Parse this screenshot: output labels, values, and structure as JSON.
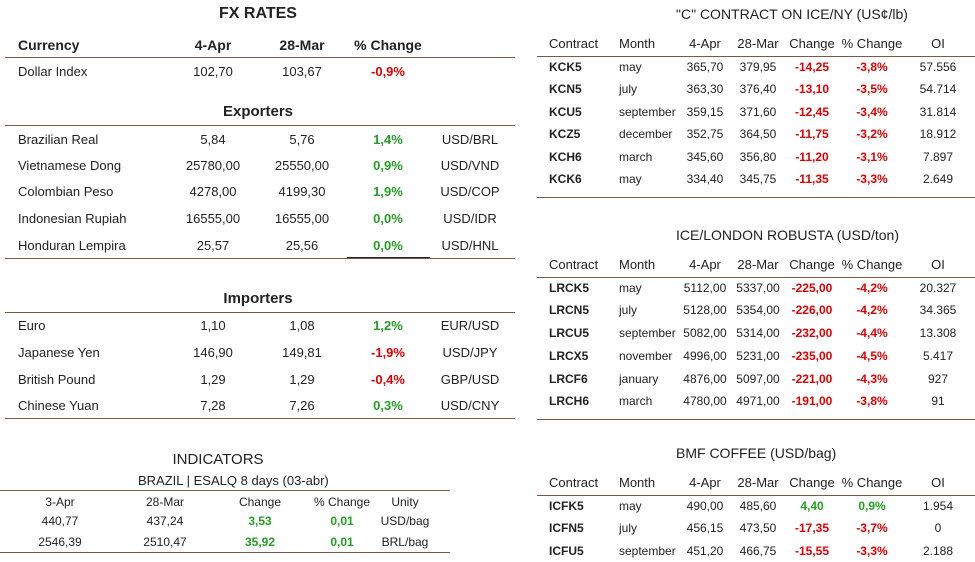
{
  "fx": {
    "title": "FX RATES",
    "header": [
      "Currency",
      "4-Apr",
      "28-Mar",
      "% Change"
    ],
    "rows": [
      [
        "Dollar Index",
        "102,70",
        "103,67",
        "-0,9%"
      ]
    ]
  },
  "exporters": {
    "title": "Exporters",
    "rows": [
      [
        "Brazilian Real",
        "5,84",
        "5,76",
        "1,4%",
        "USD/BRL"
      ],
      [
        "Vietnamese Dong",
        "25780,00",
        "25550,00",
        "0,9%",
        "USD/VND"
      ],
      [
        "Colombian Peso",
        "4278,00",
        "4199,30",
        "1,9%",
        "USD/COP"
      ],
      [
        "Indonesian Rupiah",
        "16555,00",
        "16555,00",
        "0,0%",
        "USD/IDR"
      ],
      [
        "Honduran Lempira",
        "25,57",
        "25,56",
        "0,0%",
        "USD/HNL"
      ]
    ]
  },
  "importers": {
    "title": "Importers",
    "rows": [
      [
        "Euro",
        "1,10",
        "1,08",
        "1,2%",
        "EUR/USD"
      ],
      [
        "Japanese Yen",
        "146,90",
        "149,81",
        "-1,9%",
        "USD/JPY"
      ],
      [
        "British Pound",
        "1,29",
        "1,29",
        "-0,4%",
        "GBP/USD"
      ],
      [
        "Chinese Yuan",
        "7,28",
        "7,26",
        "0,3%",
        "USD/CNY"
      ]
    ]
  },
  "indicators": {
    "title": "INDICATORS",
    "subtitle": "BRAZIL | ESALQ 8 days (03-abr)",
    "header": [
      "3-Apr",
      "28-Mar",
      "Change",
      "% Change",
      "Unity"
    ],
    "rows": [
      [
        "440,77",
        "437,24",
        "3,53",
        "0,01",
        "USD/bag"
      ],
      [
        "2546,39",
        "2510,47",
        "35,92",
        "0,01",
        "BRL/bag"
      ]
    ]
  },
  "c_contract": {
    "title": "\"C\" CONTRACT ON ICE/NY (US¢/lb)",
    "header": [
      "Contract",
      "Month",
      "4-Apr",
      "28-Mar",
      "Change",
      "% Change",
      "OI"
    ],
    "rows": [
      [
        "KCK5",
        "may",
        "365,70",
        "379,95",
        "-14,25",
        "-3,8%",
        "57.556"
      ],
      [
        "KCN5",
        "july",
        "363,30",
        "376,40",
        "-13,10",
        "-3,5%",
        "54.714"
      ],
      [
        "KCU5",
        "september",
        "359,15",
        "371,60",
        "-12,45",
        "-3,4%",
        "31.814"
      ],
      [
        "KCZ5",
        "december",
        "352,75",
        "364,50",
        "-11,75",
        "-3,2%",
        "18.912"
      ],
      [
        "KCH6",
        "march",
        "345,60",
        "356,80",
        "-11,20",
        "-3,1%",
        "7.897"
      ],
      [
        "KCK6",
        "may",
        "334,40",
        "345,75",
        "-11,35",
        "-3,3%",
        "2.649"
      ]
    ]
  },
  "robusta": {
    "title": "ICE/LONDON ROBUSTA (USD/ton)",
    "header": [
      "Contract",
      "Month",
      "4-Apr",
      "28-Mar",
      "Change",
      "% Change",
      "OI"
    ],
    "rows": [
      [
        "LRCK5",
        "may",
        "5112,00",
        "5337,00",
        "-225,00",
        "-4,2%",
        "20.327"
      ],
      [
        "LRCN5",
        "july",
        "5128,00",
        "5354,00",
        "-226,00",
        "-4,2%",
        "34.365"
      ],
      [
        "LRCU5",
        "september",
        "5082,00",
        "5314,00",
        "-232,00",
        "-4,4%",
        "13.308"
      ],
      [
        "LRCX5",
        "november",
        "4996,00",
        "5231,00",
        "-235,00",
        "-4,5%",
        "5.417"
      ],
      [
        "LRCF6",
        "january",
        "4876,00",
        "5097,00",
        "-221,00",
        "-4,3%",
        "927"
      ],
      [
        "LRCH6",
        "march",
        "4780,00",
        "4971,00",
        "-191,00",
        "-3,8%",
        "91"
      ]
    ]
  },
  "bmf": {
    "title": "BMF COFFEE (USD/bag)",
    "header": [
      "Contract",
      "Month",
      "4-Apr",
      "28-Mar",
      "Change",
      "% Change",
      "OI"
    ],
    "rows": [
      [
        "ICFK5",
        "may",
        "490,00",
        "485,60",
        "4,40",
        "0,9%",
        "1.954"
      ],
      [
        "ICFN5",
        "july",
        "456,15",
        "473,50",
        "-17,35",
        "-3,7%",
        "0"
      ],
      [
        "ICFU5",
        "september",
        "451,20",
        "466,75",
        "-15,55",
        "-3,3%",
        "2.188"
      ]
    ]
  }
}
